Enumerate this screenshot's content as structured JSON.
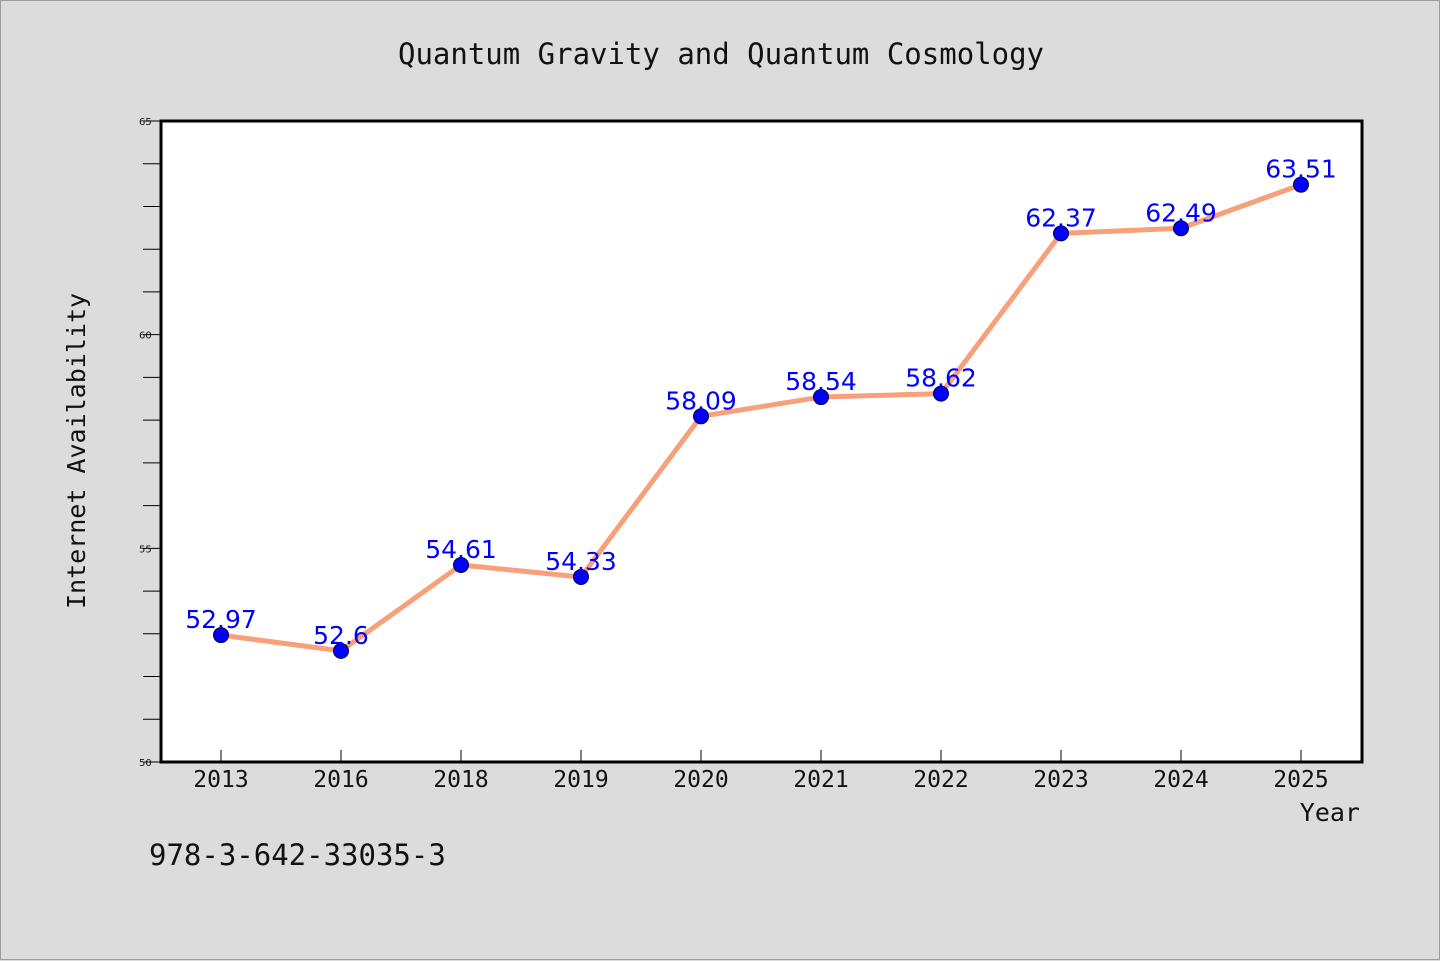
{
  "chart_data": {
    "type": "line",
    "title": "Quantum Gravity and Quantum Cosmology",
    "xlabel": "Year",
    "ylabel": "Internet Availability",
    "categories": [
      "2013",
      "2016",
      "2018",
      "2019",
      "2020",
      "2021",
      "2022",
      "2023",
      "2024",
      "2025"
    ],
    "series": [
      {
        "values": [
          52.97,
          52.6,
          54.61,
          54.33,
          58.09,
          58.54,
          58.62,
          62.37,
          62.49,
          63.51
        ],
        "data_labels": [
          "52.97",
          "52.6",
          "54.61",
          "54.33",
          "58.09",
          "58.54",
          "58.62",
          "62.37",
          "62.49",
          "63.51"
        ],
        "line_color": "#f7a07a",
        "marker_color": "#0000ff"
      }
    ],
    "ylim": [
      50,
      65
    ],
    "yticks": [
      "50",
      "55",
      "60",
      "65"
    ],
    "grid": false,
    "legend": "none"
  },
  "footer": {
    "text": "978-3-642-33035-3"
  }
}
